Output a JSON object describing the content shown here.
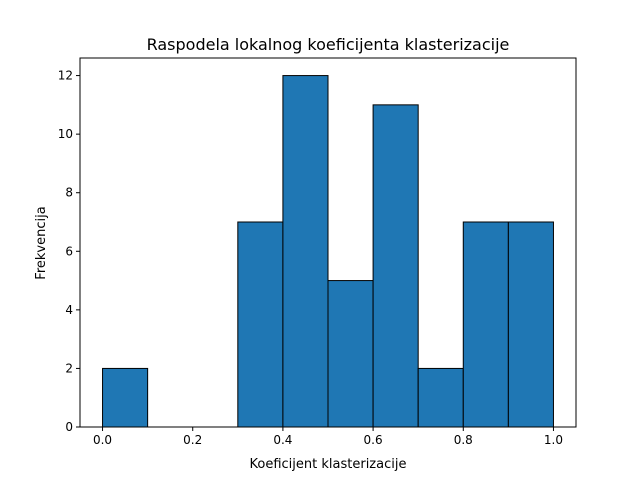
{
  "chart_data": {
    "type": "bar",
    "title": "Raspodela lokalnog koeficijenta klasterizacije",
    "xlabel": "Koeficijent klasterizacije",
    "ylabel": "Frekvencija",
    "bin_edges": [
      0.0,
      0.1,
      0.2,
      0.3,
      0.4,
      0.5,
      0.6,
      0.7,
      0.8,
      0.9,
      1.0
    ],
    "values": [
      2,
      0,
      0,
      7,
      12,
      5,
      11,
      2,
      7,
      7
    ],
    "xlim": [
      -0.05,
      1.05
    ],
    "ylim": [
      0,
      12.6
    ],
    "xticks": [
      0.0,
      0.2,
      0.4,
      0.6,
      0.8,
      1.0
    ],
    "xtick_labels": [
      "0.0",
      "0.2",
      "0.4",
      "0.6",
      "0.8",
      "1.0"
    ],
    "yticks": [
      0,
      2,
      4,
      6,
      8,
      10,
      12
    ],
    "ytick_labels": [
      "0",
      "2",
      "4",
      "6",
      "8",
      "10",
      "12"
    ],
    "grid": false,
    "bar_color": "#1f77b4",
    "edge_color": "#000000"
  }
}
